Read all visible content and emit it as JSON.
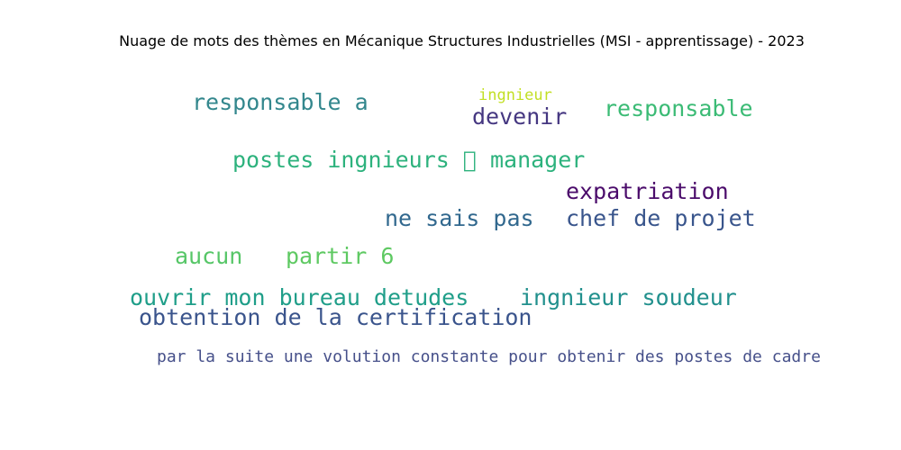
{
  "title": "Nuage de mots des thèmes en Mécanique Structures Industrielles (MSI - apprentissage) - 2023",
  "words": [
    {
      "text": "responsable a",
      "color": "#33878d"
    },
    {
      "text": "ingnieur",
      "color": "#c2df23"
    },
    {
      "text": "devenir",
      "color": "#453781"
    },
    {
      "text": "responsable",
      "color": "#3bbb75"
    },
    {
      "text": "postes ingnieurs ⃞ manager",
      "color": "#2db27d"
    },
    {
      "text": "expatriation",
      "color": "#4b0c6b"
    },
    {
      "text": "ne sais pas",
      "color": "#31688e"
    },
    {
      "text": "chef de projet",
      "color": "#39558c"
    },
    {
      "text": "aucun",
      "color": "#56c667"
    },
    {
      "text": "partir 6",
      "color": "#5ec962"
    },
    {
      "text": "ouvrir mon bureau detudes",
      "color": "#1f9e89"
    },
    {
      "text": "ingnieur soudeur",
      "color": "#21908d"
    },
    {
      "text": "obtention de la certification",
      "color": "#3a548c"
    },
    {
      "text": "par la suite une volution constante pour obtenir des postes de cadre",
      "color": "#46508a"
    }
  ]
}
